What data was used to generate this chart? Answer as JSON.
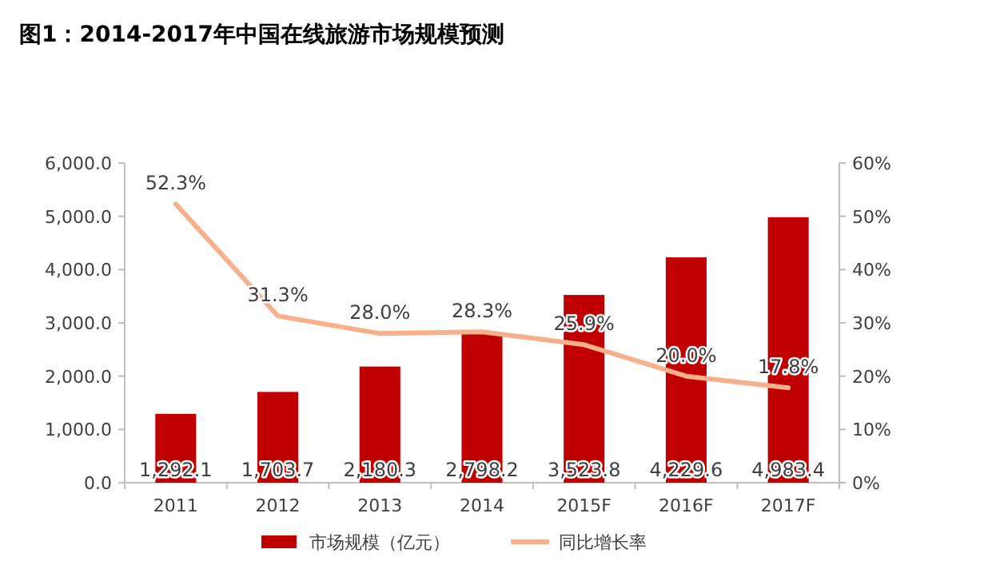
{
  "chart_data": {
    "type": "bar",
    "title": "图1：2014-2017年中国在线旅游市场规模预测",
    "categories": [
      "2011",
      "2012",
      "2013",
      "2014",
      "2015F",
      "2016F",
      "2017F"
    ],
    "series": [
      {
        "name": "市场规模（亿元）",
        "color": "#c00000",
        "values": [
          1292.1,
          1703.7,
          2180.3,
          2798.2,
          3523.8,
          4229.6,
          4983.4
        ],
        "value_labels": [
          "1,292.1",
          "1,703.7",
          "2,180.3",
          "2,798.2",
          "3,523.8",
          "4,229.6",
          "4,983.4"
        ]
      },
      {
        "name": "同比增长率",
        "type": "line",
        "axis": "y2",
        "color": "#f7b08a",
        "values": [
          52.3,
          31.3,
          28.0,
          28.3,
          25.9,
          20.0,
          17.8
        ],
        "value_labels": [
          "52.3%",
          "31.3%",
          "28.0%",
          "28.3%",
          "25.9%",
          "20.0%",
          "17.8%"
        ]
      }
    ],
    "ylim": [
      0,
      6000
    ],
    "yticks": [
      {
        "value": 0,
        "label": "0.0"
      },
      {
        "value": 1000,
        "label": "1,000.0"
      },
      {
        "value": 2000,
        "label": "2,000.0"
      },
      {
        "value": 3000,
        "label": "3,000.0"
      },
      {
        "value": 4000,
        "label": "4,000.0"
      },
      {
        "value": 5000,
        "label": "5,000.0"
      },
      {
        "value": 6000,
        "label": "6,000.0"
      }
    ],
    "y2lim": [
      0,
      60
    ],
    "y2ticks": [
      {
        "value": 0,
        "label": "0%"
      },
      {
        "value": 10,
        "label": "10%"
      },
      {
        "value": 20,
        "label": "20%"
      },
      {
        "value": 30,
        "label": "30%"
      },
      {
        "value": 40,
        "label": "40%"
      },
      {
        "value": 50,
        "label": "50%"
      },
      {
        "value": 60,
        "label": "60%"
      }
    ],
    "legend": "bottom"
  }
}
